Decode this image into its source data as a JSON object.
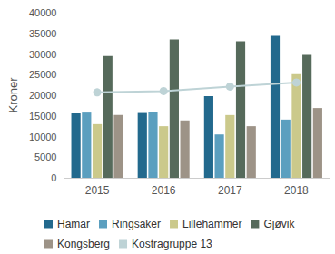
{
  "chart_data": {
    "type": "bar",
    "y_label": "Kroner",
    "categories": [
      "2015",
      "2016",
      "2017",
      "2018"
    ],
    "series": [
      {
        "name": "Hamar",
        "color": "#22698d",
        "values": [
          15600,
          15700,
          19800,
          34400
        ]
      },
      {
        "name": "Ringsaker",
        "color": "#5b9fbf",
        "values": [
          15800,
          15900,
          10500,
          14100
        ]
      },
      {
        "name": "Lillehammer",
        "color": "#cbc98b",
        "values": [
          13000,
          12500,
          15200,
          25100
        ]
      },
      {
        "name": "Gjøvik",
        "color": "#566a5b",
        "values": [
          29500,
          33500,
          33100,
          29800
        ]
      },
      {
        "name": "Kongsberg",
        "color": "#9d9387",
        "values": [
          15200,
          13900,
          12500,
          16900
        ]
      },
      {
        "name": "Kostragruppe 13",
        "color": "#bed3d6",
        "type": "line",
        "marker": "circle",
        "line_style": "solid",
        "values": [
          20700,
          21000,
          22100,
          23100
        ]
      }
    ],
    "ylim": [
      0,
      40000
    ],
    "yticks": [
      0,
      5000,
      10000,
      15000,
      20000,
      25000,
      30000,
      35000,
      40000
    ],
    "grid": false,
    "legend": "bottom"
  }
}
